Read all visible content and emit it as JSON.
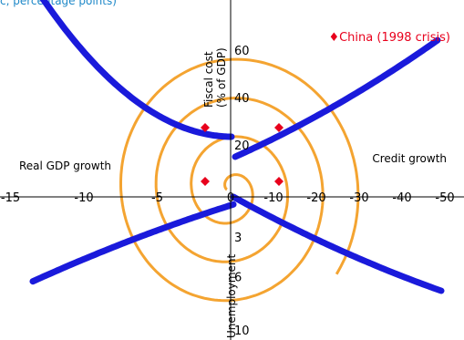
{
  "header_fragment": "c, percentage points)",
  "chart_data": {
    "type": "radar",
    "axes": {
      "left": {
        "label": "Real GDP growth",
        "ticks": [
          "-15",
          "-10",
          "-5"
        ],
        "values": [
          -15,
          -10,
          -5
        ]
      },
      "right": {
        "label": "Credit growth",
        "ticks": [
          "-10",
          "-20",
          "-30",
          "-40",
          "-50"
        ],
        "values": [
          -10,
          -20,
          -30,
          -40,
          -50
        ]
      },
      "top": {
        "label_line1": "Fiscal cost",
        "label_line2": "(% of GDP)",
        "ticks": [
          "20",
          "40",
          "60"
        ],
        "values": [
          20,
          40,
          60
        ]
      },
      "bottom": {
        "label": "Unemployment",
        "ticks": [
          "3",
          "6",
          "10"
        ],
        "values": [
          3,
          6,
          10
        ]
      },
      "origin_label": "0"
    },
    "legend": {
      "position": "top-right",
      "entries": [
        {
          "name": "China (1998 crisis)",
          "marker": "♦",
          "color": "#e8001c"
        }
      ]
    },
    "series": [
      {
        "name": "China (1998 crisis)",
        "color": "#e8001c",
        "marker": "diamond",
        "points": [
          {
            "axis": "top",
            "value": 20,
            "side": "left"
          },
          {
            "axis": "top",
            "value": 20,
            "side": "right"
          },
          {
            "axis": "bottom",
            "value": 0.7,
            "side": "left"
          },
          {
            "axis": "bottom",
            "value": 0.7,
            "side": "right"
          }
        ]
      }
    ],
    "colors": {
      "spiral": "#f4a431",
      "bands": "#1a1adb",
      "axis": "#000000",
      "marker": "#e8001c"
    }
  }
}
